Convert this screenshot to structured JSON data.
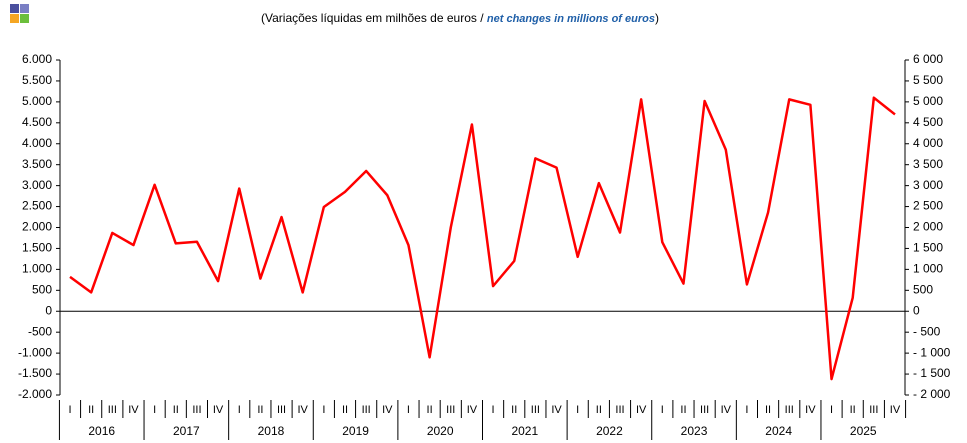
{
  "chart_data": {
    "type": "line",
    "title": [
      "(Variações líquidas em milhões de euros / ",
      "net changes in millions of euros",
      ")"
    ],
    "x": [
      "I",
      "II",
      "III",
      "IV",
      "I",
      "II",
      "III",
      "IV",
      "I",
      "II",
      "III",
      "IV",
      "I",
      "II",
      "III",
      "IV",
      "I",
      "II",
      "III",
      "IV",
      "I",
      "II",
      "III",
      "IV",
      "I",
      "II",
      "III",
      "IV",
      "I",
      "II",
      "III",
      "IV",
      "I",
      "II",
      "III",
      "IV",
      "I",
      "II",
      "III",
      "IV"
    ],
    "years": [
      "2016",
      "2017",
      "2018",
      "2019",
      "2020",
      "2021",
      "2022",
      "2023",
      "2024",
      "2025"
    ],
    "series": [
      {
        "color": "#ff0000",
        "values": [
          820,
          450,
          1870,
          1580,
          3020,
          1620,
          1660,
          720,
          2930,
          780,
          2250,
          450,
          2490,
          2850,
          3350,
          2770,
          1580,
          -1100,
          2000,
          4460,
          600,
          1200,
          3650,
          3430,
          1300,
          3060,
          1880,
          5060,
          1650,
          660,
          5020,
          3860,
          640,
          2360,
          5060,
          4930,
          -1620,
          320,
          5100,
          4700
        ]
      }
    ],
    "ylim": [
      -2000,
      6000
    ],
    "yticks": [
      {
        "value": -2000,
        "label": "-2.000"
      },
      {
        "value": -1500,
        "label": "-1.500"
      },
      {
        "value": -1000,
        "label": "-1.000"
      },
      -500,
      0,
      500,
      {
        "value": 1000,
        "label": "1.000"
      },
      {
        "value": 1500,
        "label": "1.500"
      },
      {
        "value": 2000,
        "label": "2.000"
      },
      {
        "value": 2500,
        "label": "2.500"
      },
      {
        "value": 3000,
        "label": "3.000"
      },
      {
        "value": 3500,
        "label": "3.500"
      },
      {
        "value": 4000,
        "label": "4.000"
      },
      {
        "value": 4500,
        "label": "4.500"
      },
      {
        "value": 5000,
        "label": "5.000"
      },
      {
        "value": 5500,
        "label": "5.500"
      },
      {
        "value": 6000,
        "label": "6.000"
      }
    ],
    "y2lim": [
      -2000,
      6000
    ],
    "y2ticks": [
      {
        "value": -2000,
        "label": "- 2 000"
      },
      {
        "value": -1500,
        "label": "- 1 500"
      },
      {
        "value": -1000,
        "label": "- 1 000"
      },
      {
        "value": -500,
        "label": "- 500"
      },
      0,
      500,
      {
        "value": 1000,
        "label": "1 000"
      },
      {
        "value": 1500,
        "label": "1 500"
      },
      {
        "value": 2000,
        "label": "2 000"
      },
      {
        "value": 2500,
        "label": "2 500"
      },
      {
        "value": 3000,
        "label": "3 000"
      },
      {
        "value": 3500,
        "label": "3 500"
      },
      {
        "value": 4000,
        "label": "4 000"
      },
      {
        "value": 4500,
        "label": "4 500"
      },
      {
        "value": 5000,
        "label": "5 000"
      },
      {
        "value": 5500,
        "label": "5 500"
      },
      {
        "value": 6000,
        "label": "6 000"
      }
    ],
    "grid": false
  }
}
